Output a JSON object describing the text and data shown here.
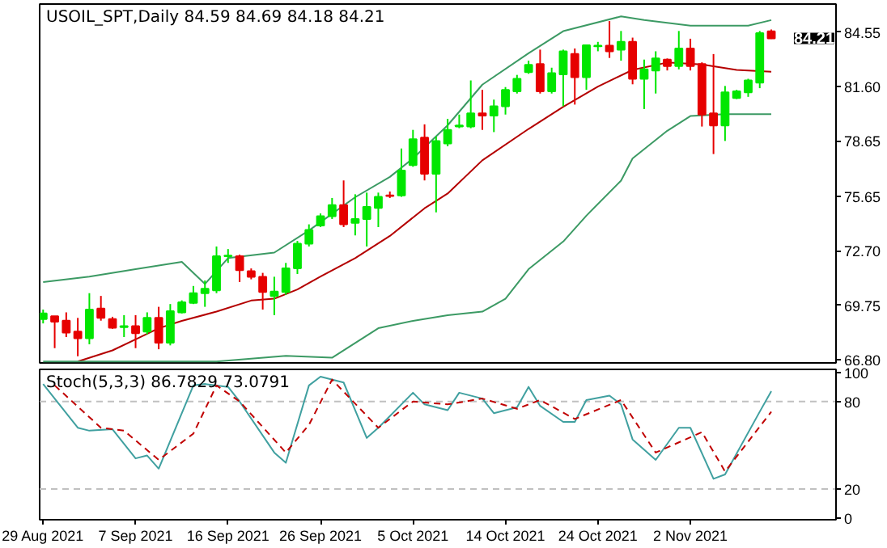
{
  "chart_data": [
    {
      "type": "candlestick",
      "title": "USOIL_SPT,Daily  84.59 84.69 84.18 84.21",
      "tick_labels": "y",
      "grid": false,
      "categories": [
        null,
        null,
        null,
        null,
        null,
        null,
        null,
        null,
        null,
        null,
        null,
        null,
        null,
        null,
        null,
        null,
        null,
        null,
        null,
        null,
        null,
        null,
        null,
        null,
        null,
        null,
        null,
        null,
        null,
        null,
        null,
        null,
        null,
        null,
        null,
        null,
        null,
        null,
        null,
        null,
        null,
        null,
        null,
        null,
        null,
        null,
        null,
        null,
        null,
        null,
        null,
        null,
        null,
        null,
        null,
        null,
        null,
        null,
        null,
        null,
        null,
        null,
        null,
        null
      ],
      "ohlc": [
        [
          69.0,
          69.51,
          68.76,
          69.3
        ],
        [
          69.15,
          69.15,
          67.42,
          68.85
        ],
        [
          68.91,
          69.36,
          68.02,
          68.26
        ],
        [
          68.32,
          69.06,
          66.98,
          67.96
        ],
        [
          67.96,
          70.4,
          67.63,
          69.51
        ],
        [
          69.57,
          70.25,
          68.91,
          69.06
        ],
        [
          69.0,
          69.12,
          68.47,
          68.53
        ],
        [
          68.56,
          69.21,
          68.02,
          68.61
        ],
        [
          68.61,
          69.21,
          67.42,
          68.23
        ],
        [
          68.32,
          69.36,
          68.17,
          69.06
        ],
        [
          69.06,
          69.66,
          67.36,
          67.72
        ],
        [
          67.72,
          69.81,
          67.57,
          69.42
        ],
        [
          69.36,
          70.01,
          69.3,
          69.9
        ],
        [
          69.87,
          70.79,
          69.81,
          70.4
        ],
        [
          70.4,
          71.09,
          69.66,
          70.64
        ],
        [
          70.55,
          72.93,
          70.4,
          72.4
        ],
        [
          72.4,
          72.79,
          72.04,
          72.43
        ],
        [
          72.4,
          72.49,
          71.0,
          71.65
        ],
        [
          71.59,
          71.74,
          71.15,
          71.29
        ],
        [
          71.29,
          71.5,
          69.51,
          70.46
        ],
        [
          70.25,
          71.29,
          69.21,
          70.49
        ],
        [
          70.46,
          72.04,
          70.31,
          71.74
        ],
        [
          71.74,
          73.23,
          71.44,
          73.08
        ],
        [
          73.08,
          74.13,
          72.93,
          73.83
        ],
        [
          74.07,
          74.72,
          73.98,
          74.57
        ],
        [
          74.57,
          75.56,
          74.42,
          75.17
        ],
        [
          75.17,
          76.51,
          73.98,
          74.13
        ],
        [
          74.21,
          75.76,
          73.53,
          74.42
        ],
        [
          74.42,
          75.85,
          72.93,
          75.08
        ],
        [
          75.02,
          75.85,
          73.98,
          75.62
        ],
        [
          75.7,
          75.91,
          75.56,
          75.67
        ],
        [
          75.7,
          78.24,
          75.62,
          77.05
        ],
        [
          77.34,
          79.25,
          77.25,
          78.74
        ],
        [
          78.83,
          79.55,
          76.51,
          76.87
        ],
        [
          76.87,
          78.89,
          74.78,
          78.65
        ],
        [
          78.51,
          79.85,
          78.36,
          79.25
        ],
        [
          79.43,
          80.08,
          79.34,
          79.49
        ],
        [
          79.43,
          81.93,
          79.34,
          80.14
        ],
        [
          80.14,
          81.42,
          79.25,
          80.02
        ],
        [
          80.02,
          80.89,
          79.13,
          80.53
        ],
        [
          80.53,
          81.57,
          80.08,
          81.42
        ],
        [
          81.34,
          82.23,
          81.22,
          82.02
        ],
        [
          82.38,
          83.0,
          82.29,
          82.77
        ],
        [
          82.82,
          83.6,
          81.22,
          81.34
        ],
        [
          81.34,
          82.62,
          81.22,
          82.32
        ],
        [
          82.26,
          83.6,
          80.53,
          83.51
        ],
        [
          83.36,
          83.66,
          80.62,
          82.11
        ],
        [
          82.11,
          83.84,
          81.42,
          83.84
        ],
        [
          83.78,
          84.02,
          83.51,
          83.81
        ],
        [
          83.81,
          85.15,
          83.15,
          83.51
        ],
        [
          83.6,
          84.61,
          83.0,
          84.02
        ],
        [
          84.02,
          84.25,
          81.72,
          82.02
        ],
        [
          82.02,
          83.06,
          80.38,
          82.53
        ],
        [
          82.47,
          83.51,
          81.22,
          83.12
        ],
        [
          83.06,
          83.12,
          82.47,
          82.71
        ],
        [
          82.71,
          84.61,
          82.53,
          83.66
        ],
        [
          83.66,
          84.19,
          82.47,
          82.71
        ],
        [
          82.82,
          82.91,
          79.43,
          80.08
        ],
        [
          80.14,
          83.36,
          77.94,
          79.49
        ],
        [
          79.49,
          81.63,
          78.65,
          81.28
        ],
        [
          80.98,
          81.42,
          80.92,
          81.34
        ],
        [
          81.28,
          82.02,
          81.04,
          81.93
        ],
        [
          81.81,
          84.61,
          81.51,
          84.49
        ],
        [
          84.59,
          84.69,
          84.18,
          84.21
        ]
      ],
      "colors": [
        "#00e600",
        "#e60000",
        "#e60000",
        "#e60000",
        "#00e600",
        "#e60000",
        "#e60000",
        "#00e600",
        "#e60000",
        "#00e600",
        "#e60000",
        "#00e600",
        "#00e600",
        "#00e600",
        "#00e600",
        "#00e600",
        "#00e600",
        "#e60000",
        "#e60000",
        "#e60000",
        "#00e600",
        "#00e600",
        "#00e600",
        "#00e600",
        "#00e600",
        "#00e600",
        "#e60000",
        "#00e600",
        "#00e600",
        "#00e600",
        "#e60000",
        "#00e600",
        "#00e600",
        "#e60000",
        "#00e600",
        "#00e600",
        "#00e600",
        "#00e600",
        "#e60000",
        "#00e600",
        "#00e600",
        "#00e600",
        "#00e600",
        "#e60000",
        "#00e600",
        "#00e600",
        "#e60000",
        "#00e600",
        "#00e600",
        "#e60000",
        "#00e600",
        "#e60000",
        "#00e600",
        "#00e600",
        "#e60000",
        "#00e600",
        "#e60000",
        "#e60000",
        "#e60000",
        "#00e600",
        "#00e600",
        "#00e600",
        "#00e600",
        "#e60000"
      ],
      "series": [
        {
          "type": "line",
          "color": "#3c9a64",
          "values": [
            71.0,
            null,
            null,
            null,
            71.3,
            null,
            null,
            null,
            71.7,
            null,
            null,
            null,
            72.1,
            null,
            70.9,
            null,
            72.3,
            null,
            null,
            null,
            72.6,
            null,
            null,
            73.8,
            null,
            null,
            null,
            75.6,
            null,
            null,
            76.7,
            null,
            77.7,
            null,
            null,
            79.5,
            null,
            null,
            81.7,
            null,
            null,
            null,
            83.4,
            null,
            null,
            84.6,
            null,
            null,
            null,
            null,
            85.4,
            null,
            85.2,
            null,
            null,
            null,
            84.9,
            null,
            null,
            null,
            null,
            84.9,
            null,
            85.2
          ]
        },
        {
          "type": "line",
          "color": "#b40000",
          "values": [
            null,
            null,
            null,
            66.7,
            null,
            null,
            67.3,
            null,
            67.9,
            null,
            68.5,
            null,
            68.9,
            null,
            null,
            69.4,
            null,
            null,
            70.0,
            null,
            70.1,
            null,
            70.6,
            null,
            71.3,
            null,
            null,
            72.3,
            null,
            null,
            73.5,
            null,
            null,
            75.0,
            null,
            75.8,
            null,
            null,
            77.6,
            null,
            null,
            null,
            79.3,
            null,
            null,
            80.5,
            null,
            null,
            81.6,
            null,
            null,
            82.5,
            null,
            null,
            82.9,
            null,
            null,
            82.8,
            null,
            null,
            82.5,
            null,
            null,
            82.4
          ]
        },
        {
          "type": "line",
          "color": "#3c9a64",
          "values": [
            66.7,
            null,
            null,
            null,
            null,
            null,
            null,
            null,
            66.7,
            null,
            null,
            null,
            null,
            null,
            null,
            66.7,
            null,
            null,
            null,
            null,
            null,
            67.0,
            null,
            null,
            null,
            66.9,
            null,
            null,
            null,
            68.5,
            null,
            null,
            68.9,
            null,
            null,
            69.2,
            null,
            null,
            69.4,
            null,
            70.1,
            null,
            71.7,
            null,
            null,
            73.2,
            null,
            74.6,
            null,
            null,
            76.5,
            77.7,
            null,
            null,
            79.2,
            null,
            80.0,
            null,
            null,
            80.1,
            null,
            null,
            null,
            80.1
          ]
        }
      ],
      "ylim": [
        66.62,
        86.07
      ],
      "yticks": [
        {
          "value": 66.8,
          "label": "66.80"
        },
        {
          "value": 69.75,
          "label": "69.75"
        },
        {
          "value": 72.7,
          "label": "72.70"
        },
        {
          "value": 75.65,
          "label": "75.65"
        },
        {
          "value": 78.65,
          "label": "78.65"
        },
        {
          "value": 81.6,
          "label": "81.60"
        },
        {
          "value": 84.55,
          "label": "84.55"
        }
      ],
      "annotations": [
        "84.21"
      ]
    },
    {
      "type": "line",
      "title": "Stoch(5,3,3) 86.7829 73.0791",
      "grid": false,
      "categories": [
        "29 Aug 2021",
        null,
        null,
        null,
        null,
        null,
        null,
        null,
        "7 Sep 2021",
        null,
        null,
        null,
        null,
        null,
        null,
        null,
        "16 Sep 2021",
        null,
        null,
        null,
        null,
        null,
        null,
        null,
        "26 Sep 2021",
        null,
        null,
        null,
        null,
        null,
        null,
        null,
        "5 Oct 2021",
        null,
        null,
        null,
        null,
        null,
        null,
        null,
        "14 Oct 2021",
        null,
        null,
        null,
        null,
        null,
        null,
        null,
        "24 Oct 2021",
        null,
        null,
        null,
        null,
        null,
        null,
        null,
        "2 Nov 2021",
        null,
        null,
        null,
        null,
        null,
        null,
        null
      ],
      "series": [
        {
          "color": "#40a0a0",
          "line_style": "solid",
          "values": [
            92,
            null,
            null,
            62,
            60,
            null,
            61,
            null,
            41,
            43,
            34,
            null,
            null,
            91,
            92,
            null,
            90,
            80,
            null,
            null,
            45,
            38,
            null,
            91,
            97,
            null,
            93,
            null,
            55,
            62,
            null,
            null,
            86,
            78,
            null,
            74,
            86,
            null,
            82,
            72,
            null,
            76,
            90,
            77,
            null,
            66,
            66,
            81,
            null,
            84,
            78,
            54,
            null,
            40,
            null,
            62,
            62,
            null,
            27,
            30,
            null,
            null,
            73,
            87
          ]
        },
        {
          "color": "#c00000",
          "line_style": "dashed",
          "values": [
            null,
            91,
            null,
            null,
            null,
            62,
            null,
            60,
            null,
            null,
            40,
            null,
            null,
            58,
            null,
            91,
            null,
            80,
            null,
            null,
            null,
            45,
            null,
            64,
            null,
            95,
            null,
            null,
            null,
            62,
            null,
            null,
            80,
            null,
            null,
            78,
            null,
            null,
            82,
            null,
            null,
            75,
            null,
            81,
            null,
            null,
            68,
            null,
            null,
            null,
            81,
            null,
            null,
            45,
            null,
            null,
            null,
            59,
            null,
            32,
            null,
            null,
            null,
            73
          ]
        }
      ],
      "ylim": [
        -1,
        102
      ],
      "yticks": [
        0,
        20,
        80,
        100
      ],
      "ref_lines": [
        {
          "axis": "y",
          "value": 20,
          "label": null,
          "color": "#c0c0c0",
          "line_style": "dashed"
        },
        {
          "axis": "y",
          "value": 80,
          "label": null,
          "color": "#c0c0c0",
          "line_style": "dashed"
        }
      ]
    }
  ]
}
